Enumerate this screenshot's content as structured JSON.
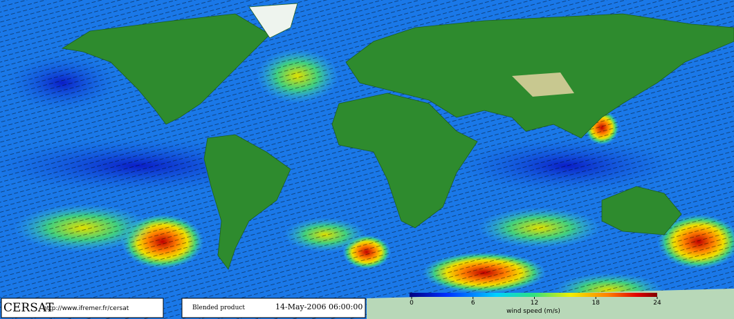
{
  "header": {
    "logo": "CERSAT",
    "url": "http://www.ifremer.fr/cersat",
    "product": "Blended product",
    "timestamp": "14-May-2006 06:00:00"
  },
  "colorbar": {
    "label": "wind speed (m/s)",
    "range": [
      0,
      24
    ],
    "ticks": [
      0,
      6,
      12,
      18,
      24
    ]
  }
}
